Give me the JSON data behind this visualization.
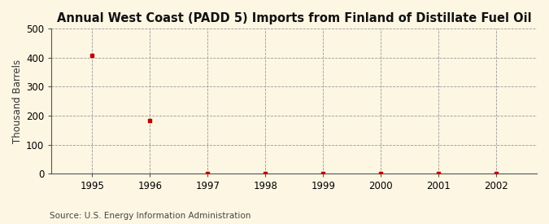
{
  "title": "Annual West Coast (PADD 5) Imports from Finland of Distillate Fuel Oil",
  "ylabel": "Thousand Barrels",
  "years": [
    1995,
    1996,
    1997,
    1998,
    1999,
    2000,
    2001,
    2002
  ],
  "values": [
    407,
    182,
    0,
    0,
    0,
    0,
    0,
    0
  ],
  "xlim": [
    1994.3,
    2002.7
  ],
  "ylim": [
    0,
    500
  ],
  "yticks": [
    0,
    100,
    200,
    300,
    400,
    500
  ],
  "xticks": [
    1995,
    1996,
    1997,
    1998,
    1999,
    2000,
    2001,
    2002
  ],
  "marker_color": "#c00000",
  "marker": "s",
  "marker_size": 3.5,
  "background_color": "#fdf6e3",
  "plot_bg_color": "#fdf6e3",
  "grid_color": "#999999",
  "grid_style": "--",
  "source_text": "Source: U.S. Energy Information Administration",
  "title_fontsize": 10.5,
  "axis_label_fontsize": 8.5,
  "tick_fontsize": 8.5,
  "source_fontsize": 7.5
}
